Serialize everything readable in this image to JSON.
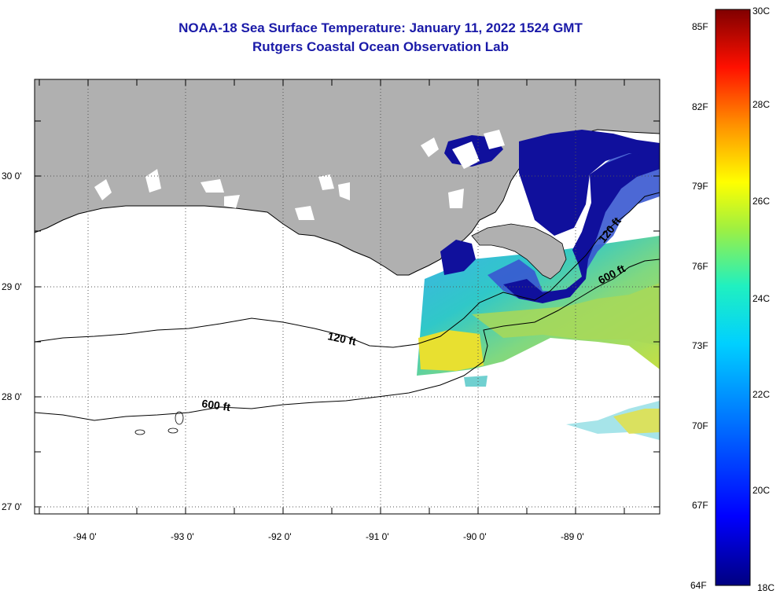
{
  "header": {
    "title": "NOAA-18 Sea Surface Temperature:  January 11, 2022 1524 GMT",
    "subtitle": "Rutgers Coastal Ocean Observation Lab"
  },
  "map": {
    "longitude_labels": [
      "-94 0'",
      "-93 0'",
      "-92 0'",
      "-91 0'",
      "-90 0'",
      "-89 0'"
    ],
    "latitude_labels": [
      "30 0'",
      "29 0'",
      "28 0'",
      "27 0'"
    ],
    "contours": {
      "shallow_label": "120 ft",
      "deep_label": "600 ft"
    },
    "colors": {
      "land": "#b0b0b0",
      "cloud": "#ffffff",
      "cold": "#10109c",
      "warm": "#f4e030"
    }
  },
  "colorbar": {
    "fahrenheit_labels": [
      "85F",
      "82F",
      "79F",
      "76F",
      "73F",
      "70F",
      "67F",
      "64F"
    ],
    "celsius_labels": [
      "30C",
      "28C",
      "26C",
      "24C",
      "22C",
      "20C",
      "18C"
    ],
    "min_c": 18,
    "max_c": 30
  }
}
